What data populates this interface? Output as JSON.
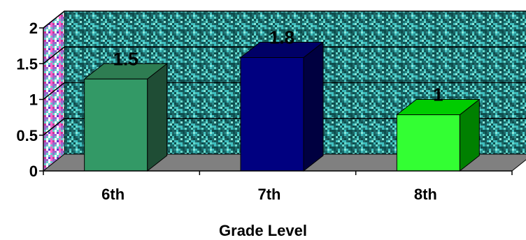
{
  "chart_data": {
    "type": "bar",
    "title": "",
    "xlabel": "Grade Level",
    "ylabel": "",
    "categories": [
      "6th",
      "7th",
      "8th"
    ],
    "values": [
      1.5,
      1.8,
      1
    ],
    "data_labels": [
      "1.5",
      "1.8",
      "1"
    ],
    "ylim": [
      0,
      2
    ],
    "yticks": [
      0,
      0.5,
      1,
      1.5,
      2
    ],
    "ytick_labels": [
      "0",
      "0.5",
      "1",
      "1.5",
      "2"
    ],
    "grid": true,
    "legend": "none",
    "bar_colors": [
      {
        "front": "#339966",
        "side": "#1f4d35",
        "top": "#2e7d52"
      },
      {
        "front": "#000080",
        "side": "#000040",
        "top": "#000066"
      },
      {
        "front": "#33ff33",
        "side": "#008000",
        "top": "#00cc00"
      }
    ],
    "floor_color": "#808080",
    "wall_color": "#2a8c8c"
  }
}
